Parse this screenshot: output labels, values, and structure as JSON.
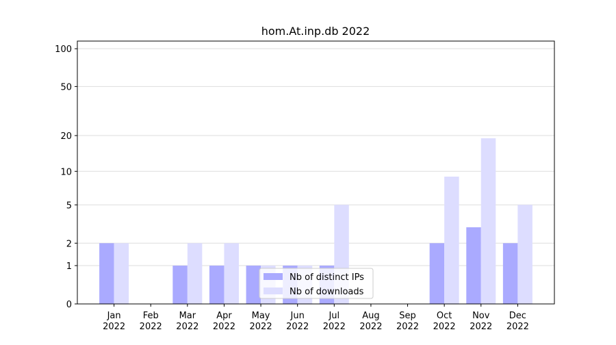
{
  "chart_data": {
    "type": "bar",
    "title": "hom.At.inp.db 2022",
    "categories": [
      "Jan 2022",
      "Feb 2022",
      "Mar 2022",
      "Apr 2022",
      "May 2022",
      "Jun 2022",
      "Jul 2022",
      "Aug 2022",
      "Sep 2022",
      "Oct 2022",
      "Nov 2022",
      "Dec 2022"
    ],
    "series": [
      {
        "name": "Nb of distinct IPs",
        "color": "#aaaaff",
        "values": [
          2,
          0,
          1,
          1,
          1,
          1,
          1,
          0,
          0,
          2,
          3,
          2
        ]
      },
      {
        "name": "Nb of downloads",
        "color": "#ddddff",
        "values": [
          2,
          0,
          2,
          2,
          1,
          1,
          5,
          0,
          0,
          9,
          19,
          5
        ]
      }
    ],
    "yscale": "log1p",
    "ylim": [
      0,
      115
    ],
    "yticks": [
      0,
      1,
      2,
      5,
      10,
      20,
      50,
      100
    ],
    "grid": true,
    "legend": "lower center"
  }
}
